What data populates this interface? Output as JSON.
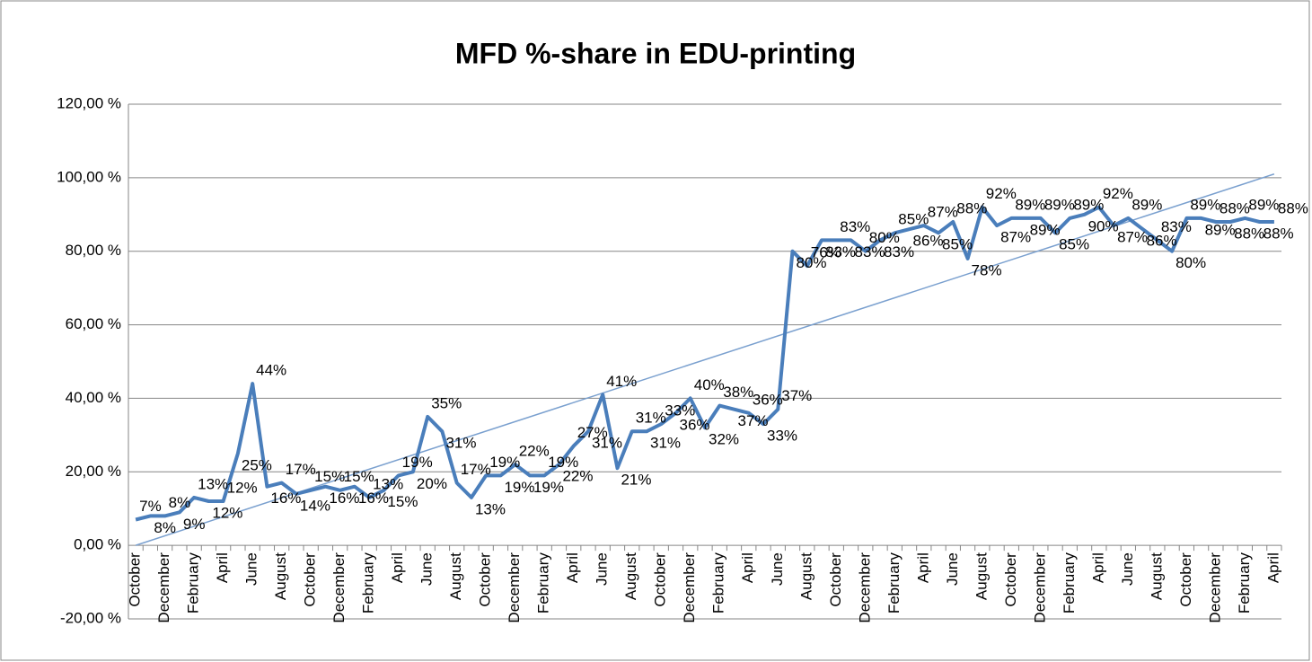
{
  "chart_data": {
    "type": "line",
    "title": "MFD %-share in EDU-printing",
    "categories": [
      "October",
      null,
      "December",
      null,
      "February",
      null,
      "April",
      null,
      "June",
      null,
      "August",
      null,
      "October",
      null,
      "December",
      null,
      "February",
      null,
      "April",
      null,
      "June",
      null,
      "August",
      null,
      "October",
      null,
      "December",
      null,
      "February",
      null,
      "April",
      null,
      "June",
      null,
      "August",
      null,
      "October",
      null,
      "December",
      null,
      "February",
      null,
      "April",
      null,
      "June",
      null,
      "August",
      null,
      "October",
      null,
      "December",
      null,
      "February",
      null,
      "April",
      null,
      "June",
      null,
      "August",
      null,
      "October",
      null,
      "December",
      null,
      "February",
      null,
      "April",
      null,
      "June",
      null,
      "August",
      null,
      "October",
      null,
      "December",
      null,
      "February",
      null,
      "April"
    ],
    "series": [
      {
        "color": "#4a7ebb",
        "values": [
          7,
          8,
          8,
          9,
          13,
          12,
          12,
          25,
          44,
          16,
          17,
          14,
          15,
          16,
          15,
          16,
          13,
          15,
          19,
          20,
          35,
          31,
          17,
          13,
          19,
          19,
          22,
          19,
          19,
          22,
          27,
          31,
          41,
          21,
          31,
          31,
          33,
          36,
          40,
          32,
          38,
          37,
          36,
          33,
          37,
          80,
          76,
          83,
          83,
          83,
          80,
          83,
          85,
          86,
          87,
          85,
          88,
          78,
          92,
          87,
          89,
          89,
          89,
          85,
          89,
          90,
          92,
          87,
          89,
          86,
          83,
          80,
          89,
          89,
          88,
          88,
          89,
          88,
          88
        ],
        "value_labels": [
          "7%",
          "8%",
          "8%",
          "9%",
          "13%",
          "12%",
          "12%",
          "25%",
          "44%",
          "16%",
          "17%",
          "14%",
          "15%",
          "16%",
          "15%",
          "16%",
          "13%",
          "15%",
          "19%",
          "20%",
          "35%",
          "31%",
          "17%",
          "13%",
          "19%",
          "19%",
          "22%",
          "19%",
          "19%",
          "22%",
          "27%",
          "31%",
          "41%",
          "21%",
          "31%",
          "31%",
          "33%",
          "36%",
          "40%",
          "32%",
          "38%",
          "37%",
          "36%",
          "33%",
          "37%",
          "80%",
          "76%",
          "83%",
          "83%",
          "83%",
          "80%",
          "83%",
          "85%",
          "86%",
          "87%",
          "85%",
          "88%",
          "78%",
          "92%",
          "87%",
          "89%",
          "89%",
          "89%",
          "85%",
          "89%",
          "90%",
          "92%",
          "87%",
          "89%",
          "86%",
          "83%",
          "80%",
          "89%",
          "89%",
          "88%",
          "88%",
          "89%",
          "88%",
          "88%"
        ]
      }
    ],
    "trendline": {
      "values": [
        0,
        101
      ],
      "color": "#7aa0cf"
    },
    "ylim": [
      -20,
      120
    ],
    "yticks": [
      {
        "value": -20,
        "label": "-20,00 %"
      },
      {
        "value": 0,
        "label": "0,00 %"
      },
      {
        "value": 20,
        "label": "20,00 %"
      },
      {
        "value": 40,
        "label": "40,00 %"
      },
      {
        "value": 60,
        "label": "60,00 %"
      },
      {
        "value": 80,
        "label": "80,00 %"
      },
      {
        "value": 100,
        "label": "100,00 %"
      },
      {
        "value": 120,
        "label": "120,00 %"
      }
    ],
    "grid": true
  }
}
